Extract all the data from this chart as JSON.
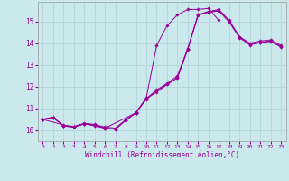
{
  "xlabel": "Windchill (Refroidissement éolien,°C)",
  "background_color": "#cbe8ed",
  "line_color": "#990099",
  "xlim": [
    -0.5,
    23.5
  ],
  "ylim": [
    9.5,
    15.9
  ],
  "yticks": [
    10,
    11,
    12,
    13,
    14,
    15
  ],
  "xticks": [
    0,
    1,
    2,
    3,
    4,
    5,
    6,
    7,
    8,
    9,
    10,
    11,
    12,
    13,
    14,
    15,
    16,
    17,
    18,
    19,
    20,
    21,
    22,
    23
  ],
  "series": [
    {
      "x": [
        0,
        1,
        2,
        3,
        4,
        5,
        6,
        7,
        8,
        9,
        10,
        11,
        12,
        13,
        14,
        15,
        16,
        17,
        18,
        19,
        20,
        21,
        22,
        23
      ],
      "y": [
        10.5,
        10.6,
        10.2,
        10.15,
        10.3,
        10.25,
        10.1,
        10.05,
        10.45,
        10.8,
        11.5,
        13.9,
        14.8,
        15.3,
        15.55,
        15.55,
        15.6,
        15.05,
        null,
        null,
        null,
        null,
        null,
        null
      ]
    },
    {
      "x": [
        0,
        1,
        2,
        3,
        4,
        5,
        6,
        7,
        8,
        9,
        10,
        11,
        12,
        13,
        14,
        15,
        16,
        17,
        18,
        19,
        20,
        21,
        22,
        23
      ],
      "y": [
        10.5,
        10.6,
        10.2,
        10.15,
        10.3,
        10.25,
        10.1,
        10.05,
        10.45,
        10.8,
        11.45,
        11.85,
        12.15,
        12.5,
        13.75,
        15.3,
        15.45,
        15.55,
        15.05,
        14.3,
        14.0,
        14.1,
        14.15,
        13.9
      ]
    },
    {
      "x": [
        0,
        2,
        3,
        4,
        5,
        6,
        9,
        10,
        11,
        12,
        13,
        14,
        15,
        16,
        17,
        18,
        19,
        20,
        21,
        22,
        23
      ],
      "y": [
        10.5,
        10.25,
        10.15,
        10.3,
        10.2,
        10.1,
        10.8,
        11.45,
        11.75,
        12.1,
        12.4,
        13.75,
        15.3,
        15.45,
        15.5,
        15.0,
        14.28,
        13.95,
        14.05,
        14.1,
        13.85
      ]
    },
    {
      "x": [
        0,
        1,
        2,
        3,
        4,
        5,
        6,
        7,
        8,
        9,
        10,
        11,
        12,
        13,
        14,
        15,
        16,
        17,
        18,
        19,
        20,
        21,
        22,
        23
      ],
      "y": [
        10.5,
        10.58,
        10.22,
        10.18,
        10.32,
        10.27,
        10.15,
        10.1,
        10.48,
        10.82,
        11.42,
        11.82,
        12.1,
        12.42,
        13.7,
        15.28,
        15.42,
        15.48,
        14.98,
        14.25,
        13.92,
        14.02,
        14.08,
        13.82
      ]
    }
  ]
}
